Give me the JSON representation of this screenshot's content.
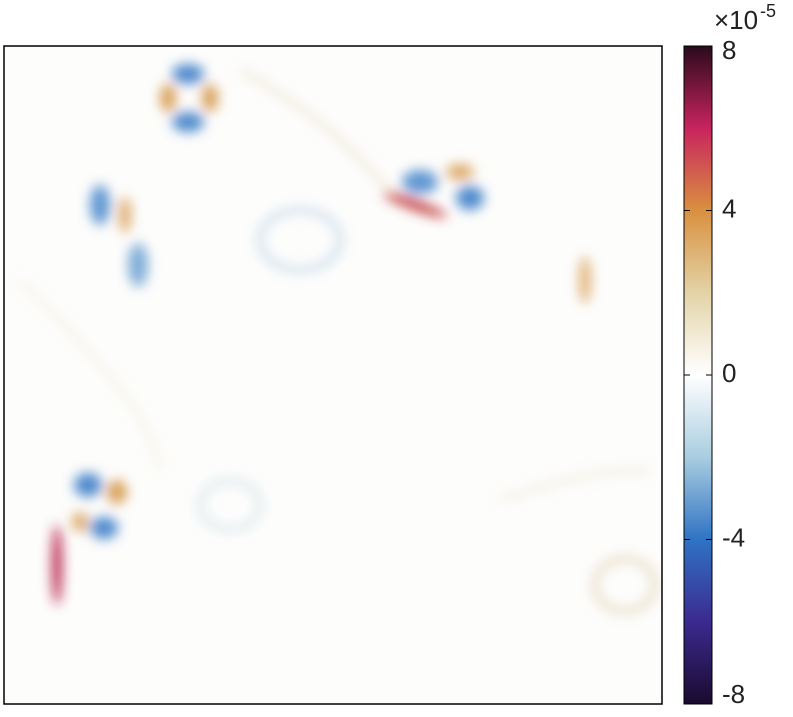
{
  "chart_data": {
    "type": "heatmap",
    "colorbar": {
      "clim": [
        -8,
        8
      ],
      "ticks": [
        -8,
        -4,
        0,
        4,
        8
      ],
      "multiplier": "×10",
      "exponent": "-5",
      "colors": [
        "#1a0a2e",
        "#3b2a8f",
        "#2f73c4",
        "#a9cde0",
        "#ffffff",
        "#e3d3a6",
        "#d9903f",
        "#c8245e",
        "#2a0a1c"
      ]
    }
  }
}
